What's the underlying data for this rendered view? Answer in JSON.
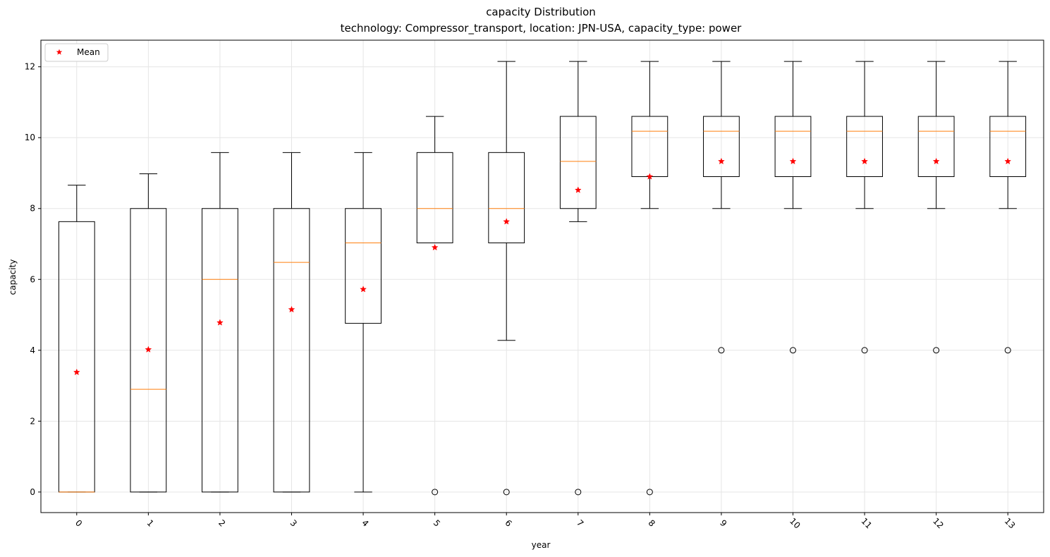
{
  "chart_data": {
    "type": "boxplot",
    "title": "capacity Distribution",
    "subtitle": "technology: Compressor_transport, location: JPN-USA, capacity_type: power",
    "xlabel": "year",
    "ylabel": "capacity",
    "categories": [
      "0",
      "1",
      "2",
      "3",
      "4",
      "5",
      "6",
      "7",
      "8",
      "9",
      "10",
      "11",
      "12",
      "13"
    ],
    "y_ticks": [
      "0",
      "2",
      "4",
      "6",
      "8",
      "10",
      "12"
    ],
    "ylim": [
      -0.58,
      12.75
    ],
    "grid": true,
    "legend": {
      "placement": "top-left",
      "entries": [
        {
          "label": "Mean",
          "marker": "star",
          "color": "#ff0000"
        }
      ]
    },
    "colors": {
      "box": "#000000",
      "median": "#ff7f0e",
      "mean": "#ff0000",
      "grid": "#e5e5e5"
    },
    "boxes": [
      {
        "year": "0",
        "whisker_low": 0,
        "q1": 0,
        "median": 0,
        "q3": 7.63,
        "whisker_high": 8.66,
        "mean": 3.38,
        "outliers": []
      },
      {
        "year": "1",
        "whisker_low": 0,
        "q1": 0,
        "median": 2.9,
        "q3": 8.0,
        "whisker_high": 8.98,
        "mean": 4.02,
        "outliers": []
      },
      {
        "year": "2",
        "whisker_low": 0,
        "q1": 0,
        "median": 6.0,
        "q3": 8.0,
        "whisker_high": 9.58,
        "mean": 4.78,
        "outliers": []
      },
      {
        "year": "3",
        "whisker_low": 0,
        "q1": 0,
        "median": 6.48,
        "q3": 8.0,
        "whisker_high": 9.58,
        "mean": 5.15,
        "outliers": []
      },
      {
        "year": "4",
        "whisker_low": 0,
        "q1": 4.76,
        "median": 7.03,
        "q3": 8.0,
        "whisker_high": 9.58,
        "mean": 5.72,
        "outliers": []
      },
      {
        "year": "5",
        "whisker_low": 7.03,
        "q1": 7.03,
        "median": 8.0,
        "q3": 9.58,
        "whisker_high": 10.6,
        "mean": 6.9,
        "outliers": [
          0
        ]
      },
      {
        "year": "6",
        "whisker_low": 4.28,
        "q1": 7.03,
        "median": 8.0,
        "q3": 9.58,
        "whisker_high": 12.15,
        "mean": 7.63,
        "outliers": [
          0
        ]
      },
      {
        "year": "7",
        "whisker_low": 7.63,
        "q1": 8.0,
        "median": 9.33,
        "q3": 10.6,
        "whisker_high": 12.15,
        "mean": 8.52,
        "outliers": [
          0
        ]
      },
      {
        "year": "8",
        "whisker_low": 8.0,
        "q1": 8.9,
        "median": 10.18,
        "q3": 10.6,
        "whisker_high": 12.15,
        "mean": 8.9,
        "outliers": [
          0
        ]
      },
      {
        "year": "9",
        "whisker_low": 8.0,
        "q1": 8.9,
        "median": 10.18,
        "q3": 10.6,
        "whisker_high": 12.15,
        "mean": 9.33,
        "outliers": [
          4
        ]
      },
      {
        "year": "10",
        "whisker_low": 8.0,
        "q1": 8.9,
        "median": 10.18,
        "q3": 10.6,
        "whisker_high": 12.15,
        "mean": 9.33,
        "outliers": [
          4
        ]
      },
      {
        "year": "11",
        "whisker_low": 8.0,
        "q1": 8.9,
        "median": 10.18,
        "q3": 10.6,
        "whisker_high": 12.15,
        "mean": 9.33,
        "outliers": [
          4
        ]
      },
      {
        "year": "12",
        "whisker_low": 8.0,
        "q1": 8.9,
        "median": 10.18,
        "q3": 10.6,
        "whisker_high": 12.15,
        "mean": 9.33,
        "outliers": [
          4
        ]
      },
      {
        "year": "13",
        "whisker_low": 8.0,
        "q1": 8.9,
        "median": 10.18,
        "q3": 10.6,
        "whisker_high": 12.15,
        "mean": 9.33,
        "outliers": [
          4
        ]
      }
    ]
  }
}
